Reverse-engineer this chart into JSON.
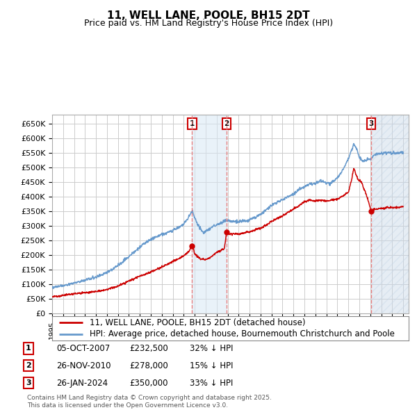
{
  "title": "11, WELL LANE, POOLE, BH15 2DT",
  "subtitle": "Price paid vs. HM Land Registry's House Price Index (HPI)",
  "ylim": [
    0,
    680000
  ],
  "xlim_start": 1995.0,
  "xlim_end": 2027.5,
  "sale_dates": [
    2007.76,
    2010.9,
    2024.07
  ],
  "sale_prices": [
    232500,
    278000,
    350000
  ],
  "sale_labels": [
    "1",
    "2",
    "3"
  ],
  "legend_entries": [
    "11, WELL LANE, POOLE, BH15 2DT (detached house)",
    "HPI: Average price, detached house, Bournemouth Christchurch and Poole"
  ],
  "table_rows": [
    {
      "num": "1",
      "date": "05-OCT-2007",
      "price": "£232,500",
      "hpi": "32% ↓ HPI"
    },
    {
      "num": "2",
      "date": "26-NOV-2010",
      "price": "£278,000",
      "hpi": "15% ↓ HPI"
    },
    {
      "num": "3",
      "date": "26-JAN-2024",
      "price": "£350,000",
      "hpi": "33% ↓ HPI"
    }
  ],
  "footnote": "Contains HM Land Registry data © Crown copyright and database right 2025.\nThis data is licensed under the Open Government Licence v3.0.",
  "line_color_red": "#cc0000",
  "line_color_blue": "#6699cc",
  "vline_color": "#e88080",
  "grid_color": "#cccccc",
  "background_color": "#ffffff",
  "shade_color": "#d8e8f5",
  "hatch_color": "#c8d8e8",
  "tick_label_vals": [
    0,
    50000,
    100000,
    150000,
    200000,
    250000,
    300000,
    350000,
    400000,
    450000,
    500000,
    550000,
    600000,
    650000
  ],
  "tick_label_strs": [
    "£0",
    "£50K",
    "£100K",
    "£150K",
    "£200K",
    "£250K",
    "£300K",
    "£350K",
    "£400K",
    "£450K",
    "£500K",
    "£550K",
    "£600K",
    "£650K"
  ]
}
